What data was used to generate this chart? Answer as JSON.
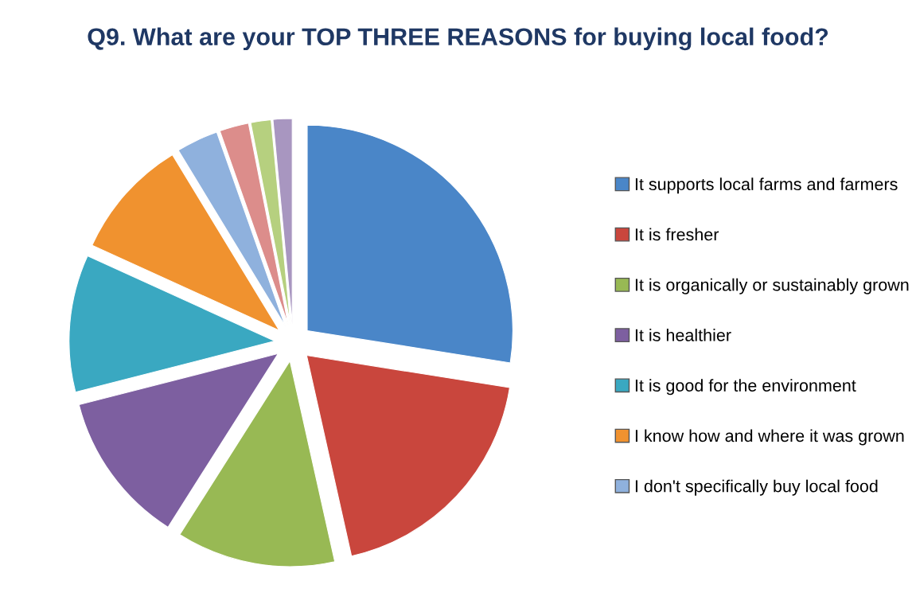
{
  "chart_data": {
    "type": "pie",
    "title": "Q9. What are your TOP THREE REASONS for buying local food?",
    "categories": [
      "It supports local farms and farmers",
      "It is fresher",
      "It is organically or sustainably grown",
      "It is healthier",
      "It is good for the environment",
      "I know how and where it was grown",
      "I don't specifically buy local food",
      null,
      null,
      null
    ],
    "values": [
      27.5,
      19,
      12.5,
      12,
      10.8,
      9.5,
      3.3,
      2.3,
      1.6,
      1.5
    ],
    "colors": [
      "#4a86c8",
      "#c9463d",
      "#98b954",
      "#7d5fa0",
      "#3aa8c1",
      "#f0922f",
      "#8fb1dd",
      "#dc8d8b",
      "#b6d07f",
      "#a896c0"
    ],
    "legend": "right"
  }
}
